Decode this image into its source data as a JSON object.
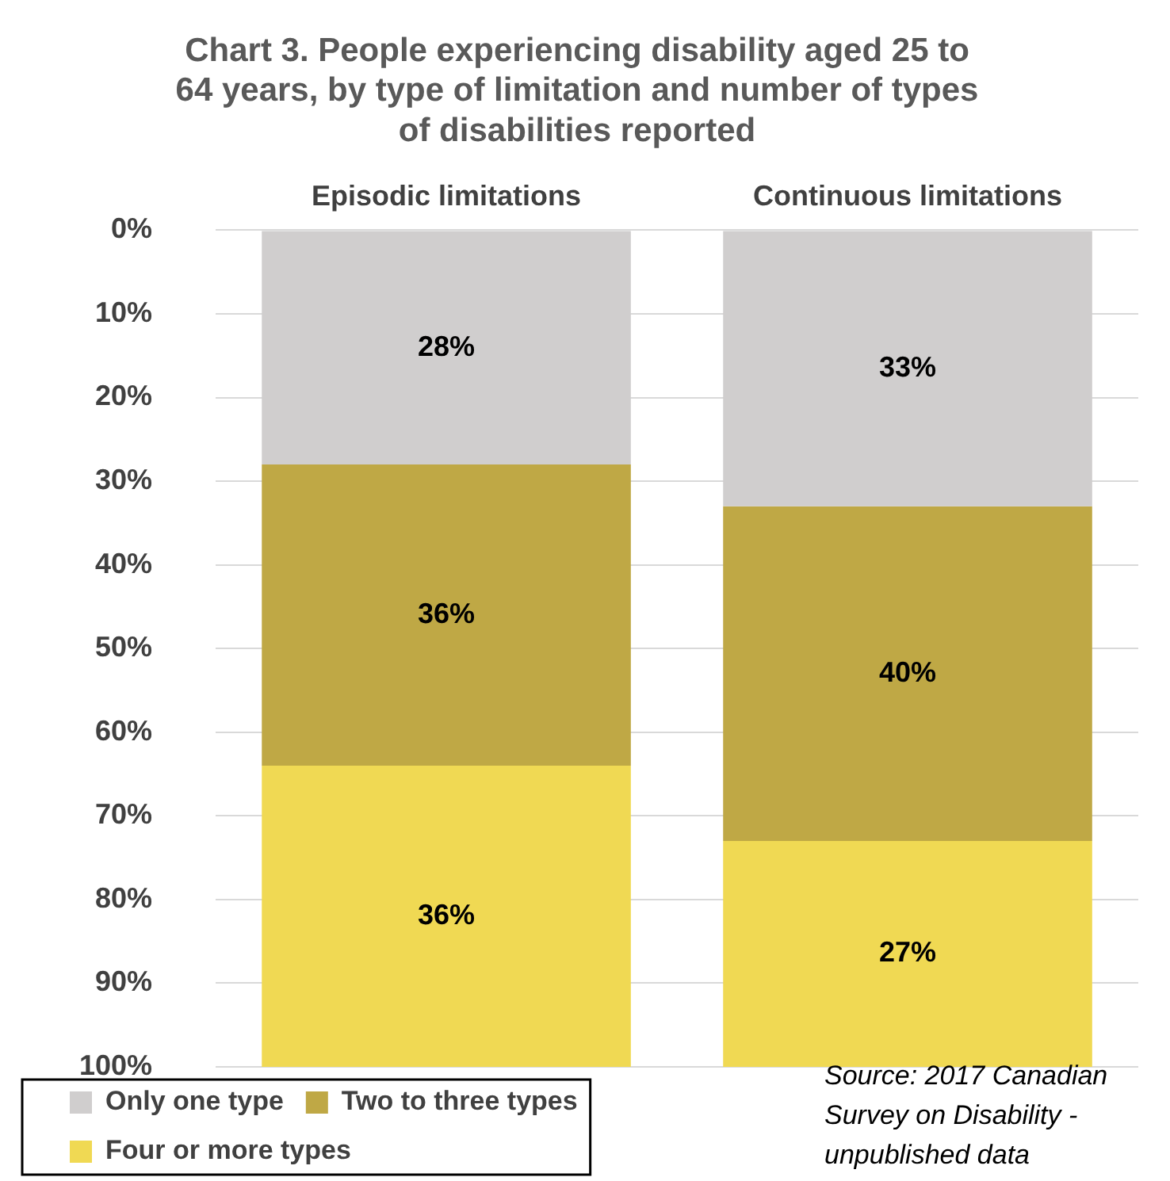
{
  "chart_data": {
    "type": "bar",
    "stacked": true,
    "title": [
      "Chart 3. People experiencing disability aged 25 to",
      "64 years, by type of limitation and number of types",
      "of disabilities reported"
    ],
    "categories": [
      "Episodic limitations",
      "Continuous limitations"
    ],
    "series": [
      {
        "name": "Only one type",
        "color": "#d0cece",
        "values": [
          28,
          33
        ],
        "value_labels": [
          "28%",
          "33%"
        ]
      },
      {
        "name": "Two to three types",
        "color": "#bfa845",
        "values": [
          36,
          40
        ],
        "value_labels": [
          "36%",
          "40%"
        ]
      },
      {
        "name": "Four or more types",
        "color": "#f0d953",
        "values": [
          36,
          27
        ],
        "value_labels": [
          "36%",
          "27%"
        ]
      }
    ],
    "ylim": [
      100,
      0
    ],
    "yticks": [
      {
        "value": 0,
        "label": "0%"
      },
      {
        "value": 10,
        "label": "10%"
      },
      {
        "value": 20,
        "label": "20%"
      },
      {
        "value": 30,
        "label": "30%"
      },
      {
        "value": 40,
        "label": "40%"
      },
      {
        "value": 50,
        "label": "50%"
      },
      {
        "value": 60,
        "label": "60%"
      },
      {
        "value": 70,
        "label": "70%"
      },
      {
        "value": 80,
        "label": "80%"
      },
      {
        "value": 90,
        "label": "90%"
      },
      {
        "value": 100,
        "label": "100%"
      }
    ],
    "grid": "y",
    "legend": "bottom left",
    "annotations": [
      "Source: 2017 Canadian Survey on Disability - unpublished data"
    ]
  }
}
